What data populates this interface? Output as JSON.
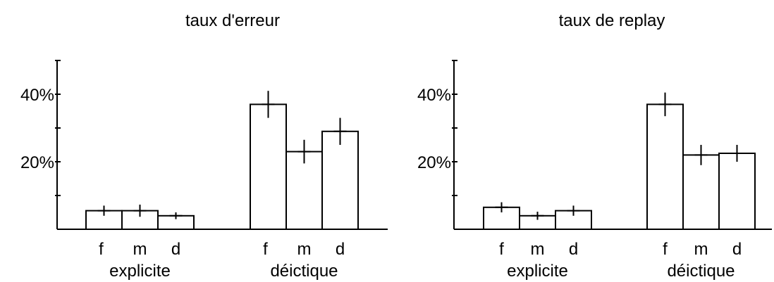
{
  "chart_data": [
    {
      "type": "bar",
      "title": "taux d'erreur",
      "xlabel": "",
      "ylabel": "",
      "ylim": [
        0,
        50
      ],
      "yticks": [
        10,
        20,
        30,
        40,
        50
      ],
      "ytick_labels": [
        {
          "value": 20,
          "label": "20%"
        },
        {
          "value": 40,
          "label": "40%"
        }
      ],
      "groups": [
        {
          "label": "explicite",
          "categories": [
            "f",
            "m",
            "d"
          ],
          "values": [
            5.5,
            5.5,
            4.0
          ],
          "errors": [
            1.5,
            1.8,
            1.0
          ]
        },
        {
          "label": "déictique",
          "categories": [
            "f",
            "m",
            "d"
          ],
          "values": [
            37.0,
            23.0,
            29.0
          ],
          "errors": [
            4.0,
            3.5,
            4.0
          ]
        }
      ],
      "error_bars": true,
      "grid": false,
      "legend": "none"
    },
    {
      "type": "bar",
      "title": "taux de replay",
      "xlabel": "",
      "ylabel": "",
      "ylim": [
        0,
        50
      ],
      "yticks": [
        10,
        20,
        30,
        40,
        50
      ],
      "ytick_labels": [
        {
          "value": 20,
          "label": "20%"
        },
        {
          "value": 40,
          "label": "40%"
        }
      ],
      "groups": [
        {
          "label": "explicite",
          "categories": [
            "f",
            "m",
            "d"
          ],
          "values": [
            6.5,
            4.0,
            5.5
          ],
          "errors": [
            1.5,
            1.2,
            1.5
          ]
        },
        {
          "label": "déictique",
          "categories": [
            "f",
            "m",
            "d"
          ],
          "values": [
            37.0,
            22.0,
            22.5
          ],
          "errors": [
            3.5,
            3.0,
            2.5
          ]
        }
      ],
      "error_bars": true,
      "grid": false,
      "legend": "none"
    }
  ]
}
